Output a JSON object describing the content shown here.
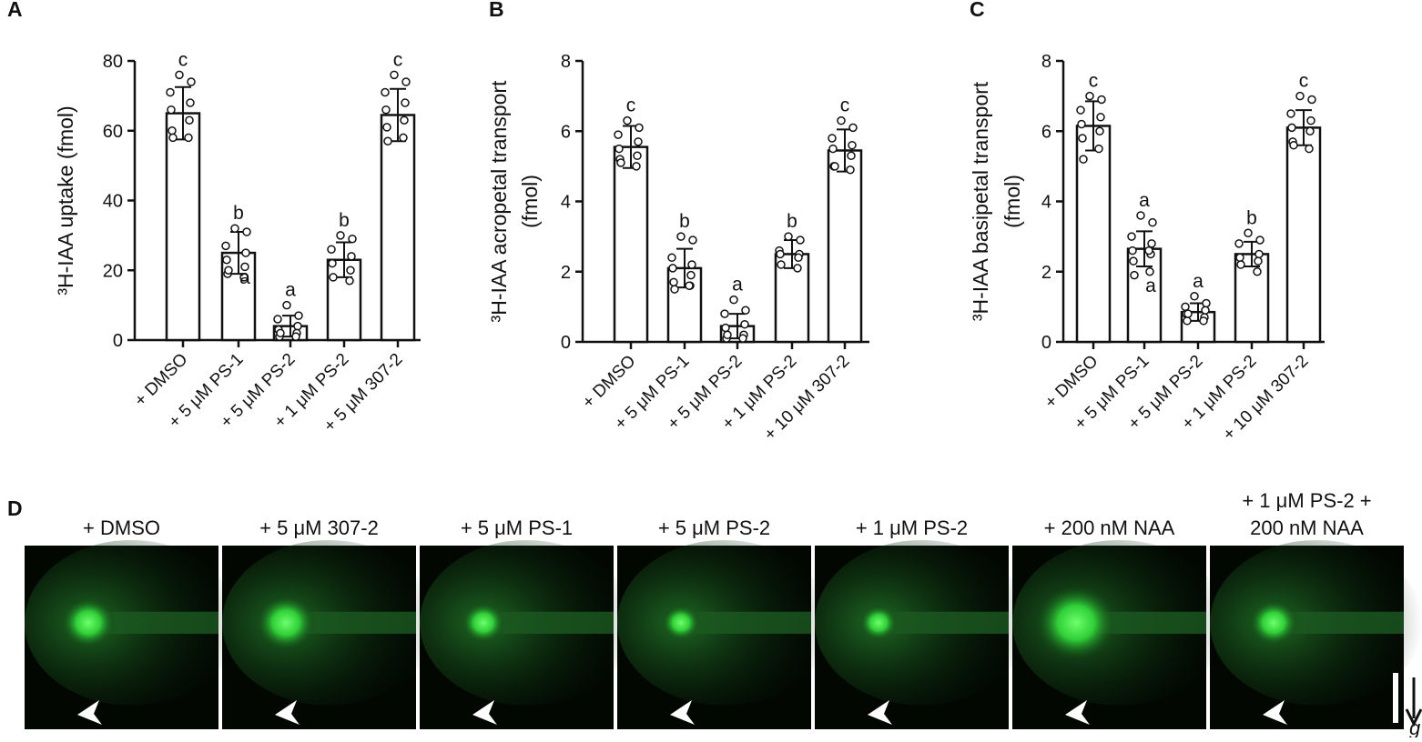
{
  "chart_data": [
    {
      "type": "bar",
      "panel": "A",
      "ylabel": [
        "³H-IAA uptake (fmol)"
      ],
      "categories": [
        "+ DMSO",
        "+ 5 μM PS-1",
        "+ 5 μM PS-2",
        "+ 1 μM PS-2",
        "+ 5 μM 307-2"
      ],
      "values": [
        65,
        25,
        4,
        23,
        64.5
      ],
      "errors": [
        7.5,
        6,
        3,
        5,
        7.5
      ],
      "points": [
        [
          76,
          74,
          71,
          68,
          66,
          63,
          60,
          58,
          58
        ],
        [
          32,
          31,
          27,
          25,
          23,
          21,
          19,
          18,
          20
        ],
        [
          10,
          7,
          6,
          4,
          3,
          2,
          1,
          1,
          2
        ],
        [
          30,
          29,
          26,
          24,
          22,
          20,
          18,
          17
        ],
        [
          76,
          74,
          71,
          68,
          66,
          63,
          61,
          58,
          57
        ]
      ],
      "annotations": [
        "c",
        "b",
        "a",
        "b",
        "c"
      ],
      "extra_annotations": [
        {
          "text": "a",
          "category": 1,
          "y": 18
        }
      ],
      "ylim": [
        0,
        80
      ],
      "yticks": [
        0,
        20,
        40,
        60,
        80
      ],
      "color": "#ffffff"
    },
    {
      "type": "bar",
      "panel": "B",
      "ylabel": [
        "³H-IAA  acropetal transport",
        "(fmol)"
      ],
      "categories": [
        "+ DMSO",
        "+ 5 μM PS-1",
        "+ 5 μM PS-2",
        "+ 1 μM PS-2",
        "+ 10 μM 307-2"
      ],
      "values": [
        5.55,
        2.1,
        0.45,
        2.5,
        5.45
      ],
      "errors": [
        0.6,
        0.55,
        0.35,
        0.4,
        0.6
      ],
      "points": [
        [
          6.3,
          6.1,
          5.9,
          5.7,
          5.5,
          5.3,
          5.2,
          5.0,
          5.1
        ],
        [
          3.0,
          2.9,
          2.4,
          2.2,
          2.1,
          1.9,
          1.7,
          1.6,
          1.5,
          1.6
        ],
        [
          1.2,
          0.9,
          0.8,
          0.5,
          0.4,
          0.2,
          0.1,
          0.1,
          0.2
        ],
        [
          3.0,
          2.9,
          2.6,
          2.5,
          2.5,
          2.4,
          2.2,
          2.1
        ],
        [
          6.3,
          6.1,
          5.8,
          5.6,
          5.5,
          5.3,
          5.0,
          4.9,
          5.0
        ]
      ],
      "annotations": [
        "c",
        "b",
        "a",
        "b",
        "c"
      ],
      "ylim": [
        0,
        8
      ],
      "yticks": [
        0,
        2,
        4,
        6,
        8
      ],
      "color": "#ffffff"
    },
    {
      "type": "bar",
      "panel": "C",
      "ylabel": [
        "³H-IAA  basipetal transport",
        "(fmol)"
      ],
      "categories": [
        "+ DMSO",
        "+ 5 μM PS-1",
        "+ 5 μM PS-2",
        "+ 1 μM PS-2",
        "+ 10 μM 307-2"
      ],
      "values": [
        6.15,
        2.65,
        0.85,
        2.5,
        6.1
      ],
      "errors": [
        0.7,
        0.5,
        0.25,
        0.35,
        0.5
      ],
      "points": [
        [
          7.0,
          6.9,
          6.6,
          6.4,
          6.2,
          6.0,
          5.8,
          5.5,
          5.2
        ],
        [
          3.6,
          3.4,
          3.0,
          2.8,
          2.6,
          2.5,
          2.3,
          2.0,
          1.9,
          2.6
        ],
        [
          1.3,
          1.1,
          1.0,
          0.9,
          0.8,
          0.7,
          0.6,
          0.6,
          0.8
        ],
        [
          3.1,
          2.9,
          2.8,
          2.5,
          2.4,
          2.3,
          2.2,
          2.0
        ],
        [
          7.0,
          6.9,
          6.5,
          6.3,
          6.1,
          6.0,
          5.7,
          5.5,
          5.6
        ]
      ],
      "annotations": [
        "c",
        "a",
        "a",
        "b",
        "c"
      ],
      "extra_annotations": [
        {
          "text": "a",
          "category": 1,
          "y": 1.6
        }
      ],
      "ylim": [
        0,
        8
      ],
      "yticks": [
        0,
        2,
        4,
        6,
        8
      ],
      "color": "#ffffff"
    }
  ],
  "image_panel": {
    "panel": "D",
    "labels": [
      [
        "+ DMSO"
      ],
      [
        "+ 5 μM 307-2"
      ],
      [
        "+ 5 μM PS-1"
      ],
      [
        "+ 5 μM PS-2"
      ],
      [
        "+ 1 μM PS-2"
      ],
      [
        "+ 200 nM NAA"
      ],
      [
        "+ 1 μM PS-2 +",
        "200 nM NAA"
      ]
    ],
    "gravity_label": "g"
  }
}
